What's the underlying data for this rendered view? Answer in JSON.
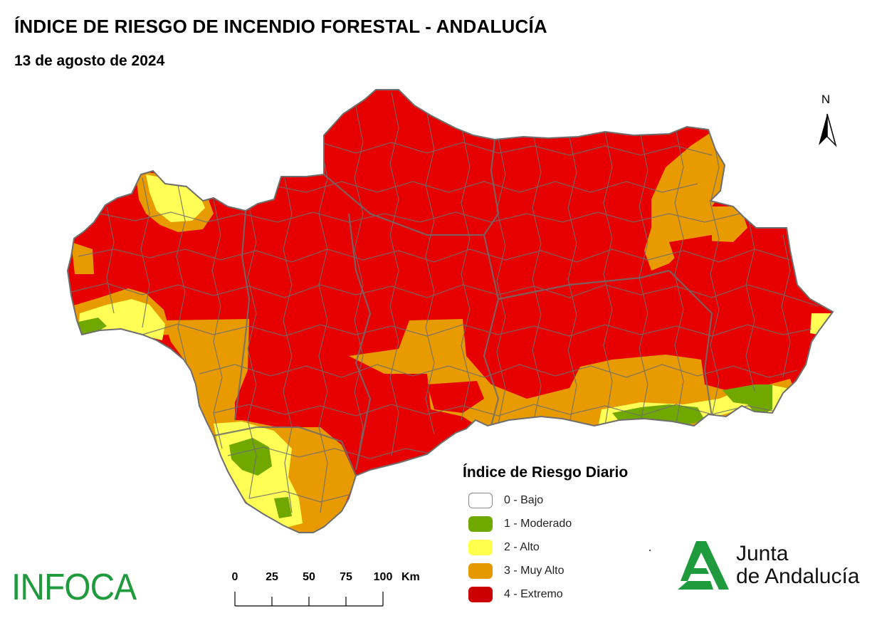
{
  "header": {
    "title": "ÍNDICE DE RIESGO DE INCENDIO FORESTAL - ANDALUCÍA",
    "date": "13 de agosto de 2024"
  },
  "north_arrow": {
    "label": "N"
  },
  "legend": {
    "title": "Índice de Riesgo Diario",
    "items": [
      {
        "label": "0 - Bajo",
        "color": "#ffffff"
      },
      {
        "label": "1 - Moderado",
        "color": "#70a800"
      },
      {
        "label": "2 - Alto",
        "color": "#ffff4d"
      },
      {
        "label": "3 - Muy Alto",
        "color": "#e69800"
      },
      {
        "label": "4 - Extremo",
        "color": "#cc0000"
      }
    ]
  },
  "map": {
    "region": "Andalucía",
    "colors": {
      "extremo": "#e60000",
      "muy_alto": "#e89b00",
      "alto": "#ffff55",
      "moderado": "#70a800",
      "borders": "#6e6e6e"
    }
  },
  "scale_bar": {
    "ticks": [
      "0",
      "25",
      "50",
      "75",
      "100"
    ],
    "unit": "Km"
  },
  "logos": {
    "infoca": "INFOCA",
    "junta_line1": "Junta",
    "junta_line2": "de Andalucía",
    "junta_color": "#1f9a3c"
  }
}
